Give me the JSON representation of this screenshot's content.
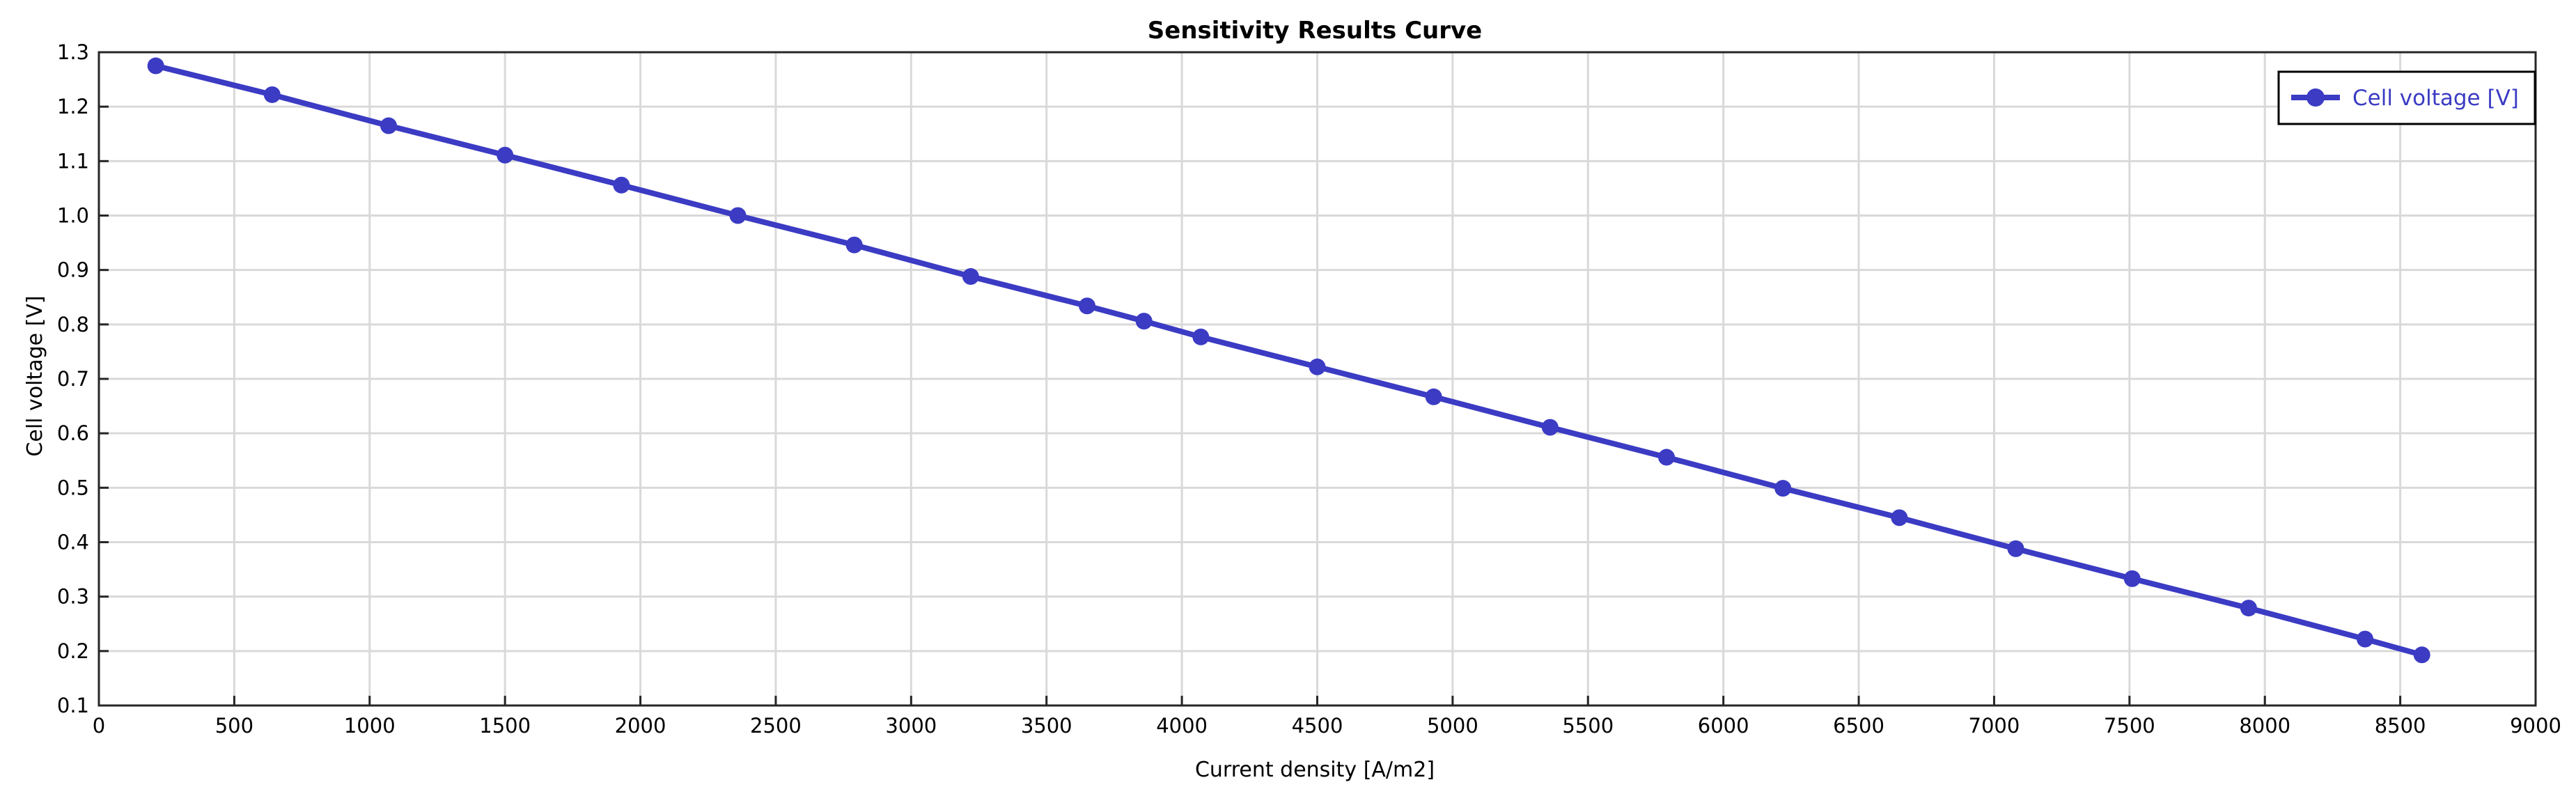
{
  "chart_data": {
    "type": "line",
    "title": "Sensitivity Results Curve",
    "xlabel": "Current density [A/m2]",
    "ylabel": "Cell voltage [V]",
    "xlim": [
      0,
      9000
    ],
    "ylim": [
      0.1,
      1.3
    ],
    "xticks": [
      0,
      500,
      1000,
      1500,
      2000,
      2500,
      3000,
      3500,
      4000,
      4500,
      5000,
      5500,
      6000,
      6500,
      7000,
      7500,
      8000,
      8500,
      9000
    ],
    "xtick_labels": [
      "0",
      "500",
      "1000",
      "1500",
      "2000",
      "2500",
      "3000",
      "3500",
      "4000",
      "4500",
      "5000",
      "5500",
      "6000",
      "6500",
      "7000",
      "7500",
      "8000",
      "8500",
      "9000"
    ],
    "yticks": [
      0.1,
      0.2,
      0.3,
      0.4,
      0.5,
      0.6,
      0.7,
      0.8,
      0.9,
      1.0,
      1.1,
      1.2,
      1.3
    ],
    "ytick_labels": [
      "0.1",
      "0.2",
      "0.3",
      "0.4",
      "0.5",
      "0.6",
      "0.7",
      "0.8",
      "0.9",
      "1.0",
      "1.1",
      "1.2",
      "1.3"
    ],
    "grid": true,
    "legend_position": "top-right",
    "series": [
      {
        "name": "Cell voltage [V]",
        "color": "#3b3bc4",
        "x": [
          210,
          640,
          1070,
          1500,
          1930,
          2360,
          2790,
          3220,
          3650,
          3860,
          4070,
          4500,
          4930,
          5360,
          5790,
          6220,
          6650,
          7080,
          7510,
          7940,
          8370,
          8580
        ],
        "y": [
          1.275,
          1.222,
          1.165,
          1.111,
          1.056,
          1.0,
          0.946,
          0.888,
          0.834,
          0.806,
          0.777,
          0.722,
          0.667,
          0.611,
          0.556,
          0.499,
          0.445,
          0.388,
          0.333,
          0.279,
          0.222,
          0.193
        ]
      }
    ]
  }
}
